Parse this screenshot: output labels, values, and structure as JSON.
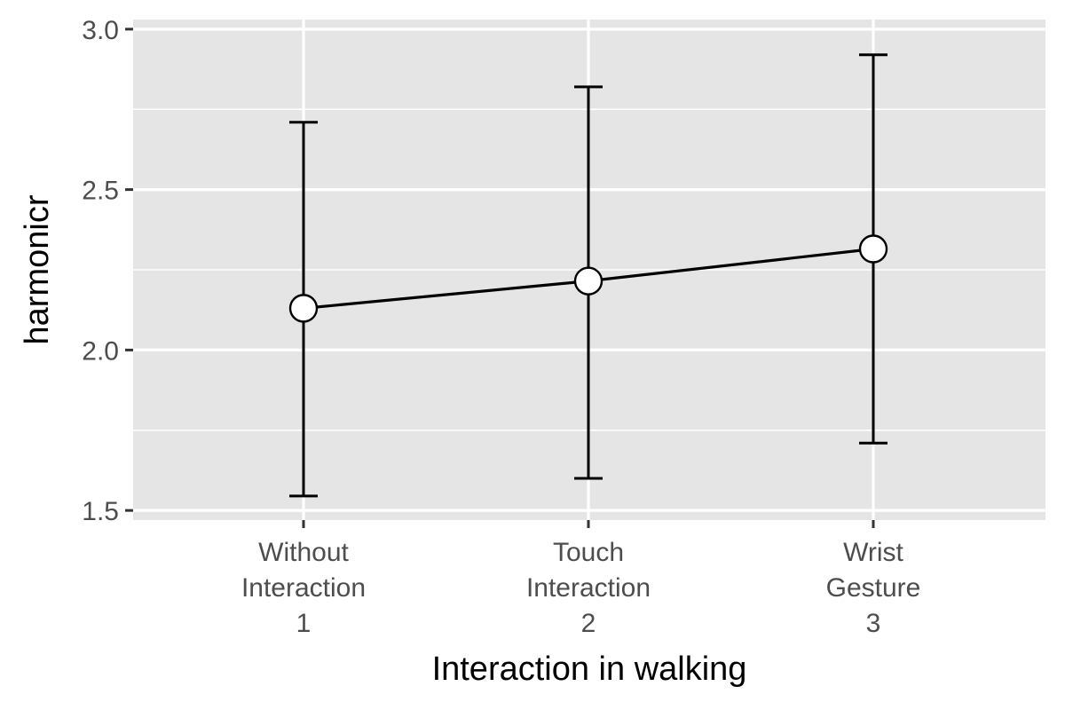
{
  "chart_data": {
    "type": "line",
    "xlabel": "Interaction in walking",
    "ylabel": "harmonicr",
    "ylim": [
      1.47,
      3.03
    ],
    "grid": true,
    "legend": "none",
    "y_ticks": [
      {
        "value": 1.5,
        "label": "1.5"
      },
      {
        "value": 2.0,
        "label": "2.0"
      },
      {
        "value": 2.5,
        "label": "2.5"
      },
      {
        "value": 3.0,
        "label": "3.0"
      }
    ],
    "y_minor_ticks": [
      1.75,
      2.25,
      2.75
    ],
    "categories": [
      {
        "lines": [
          "Without",
          "Interaction",
          "1"
        ]
      },
      {
        "lines": [
          "Touch",
          "Interaction",
          "2"
        ]
      },
      {
        "lines": [
          "Wrist",
          "Gesture",
          "3"
        ]
      }
    ],
    "series": [
      {
        "values": [
          2.13,
          2.215,
          2.315
        ],
        "error_low": [
          1.545,
          1.6,
          1.71
        ],
        "error_high": [
          2.71,
          2.82,
          2.92
        ]
      }
    ],
    "colors": {
      "panel_background": "#e5e5e5",
      "grid_line": "#ffffff",
      "line": "#000000",
      "point_fill": "#ffffff",
      "point_stroke": "#000000",
      "tick_label": "#4d4d4d",
      "tick_mark": "#333333",
      "axis_title": "#000000"
    }
  }
}
